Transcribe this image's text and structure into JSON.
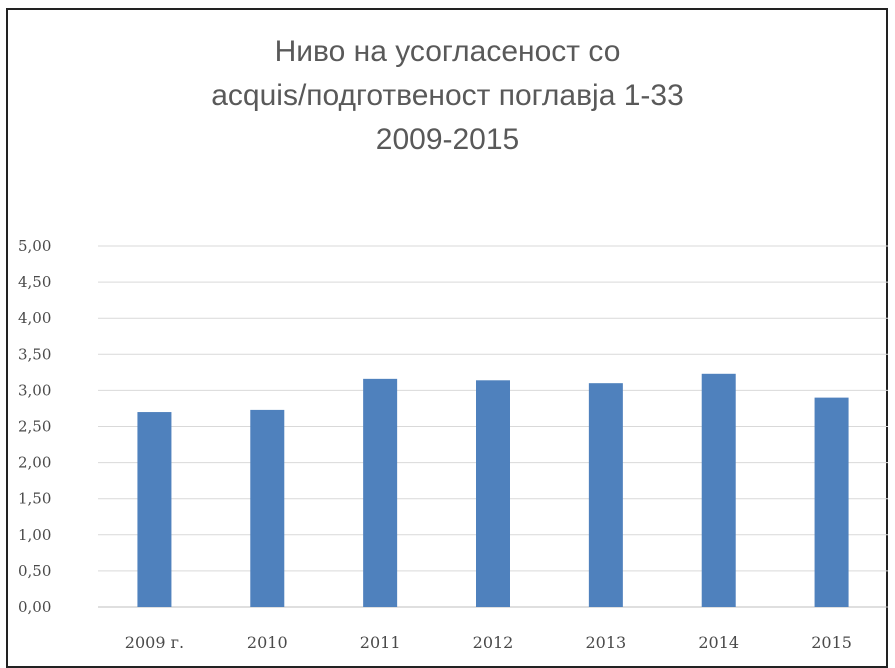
{
  "chart_data": {
    "type": "bar",
    "title_lines": [
      "Ниво на усогласеност со",
      "acquis/подготвеност поглавја 1-33",
      "2009-2015"
    ],
    "categories": [
      "2009 г.",
      "2010",
      "2011",
      "2012",
      "2013",
      "2014",
      "2015"
    ],
    "values": [
      2.7,
      2.73,
      3.16,
      3.14,
      3.1,
      3.23,
      2.9
    ],
    "ylim": [
      0,
      5
    ],
    "yticks": [
      "0,00",
      "0,50",
      "1,00",
      "1,50",
      "2,00",
      "2,50",
      "3,00",
      "3,50",
      "4,00",
      "4,50",
      "5,00"
    ],
    "grid": true,
    "colors": {
      "bar": "#4f81bd",
      "grid": "#d9d9d9",
      "title": "#595959"
    }
  }
}
